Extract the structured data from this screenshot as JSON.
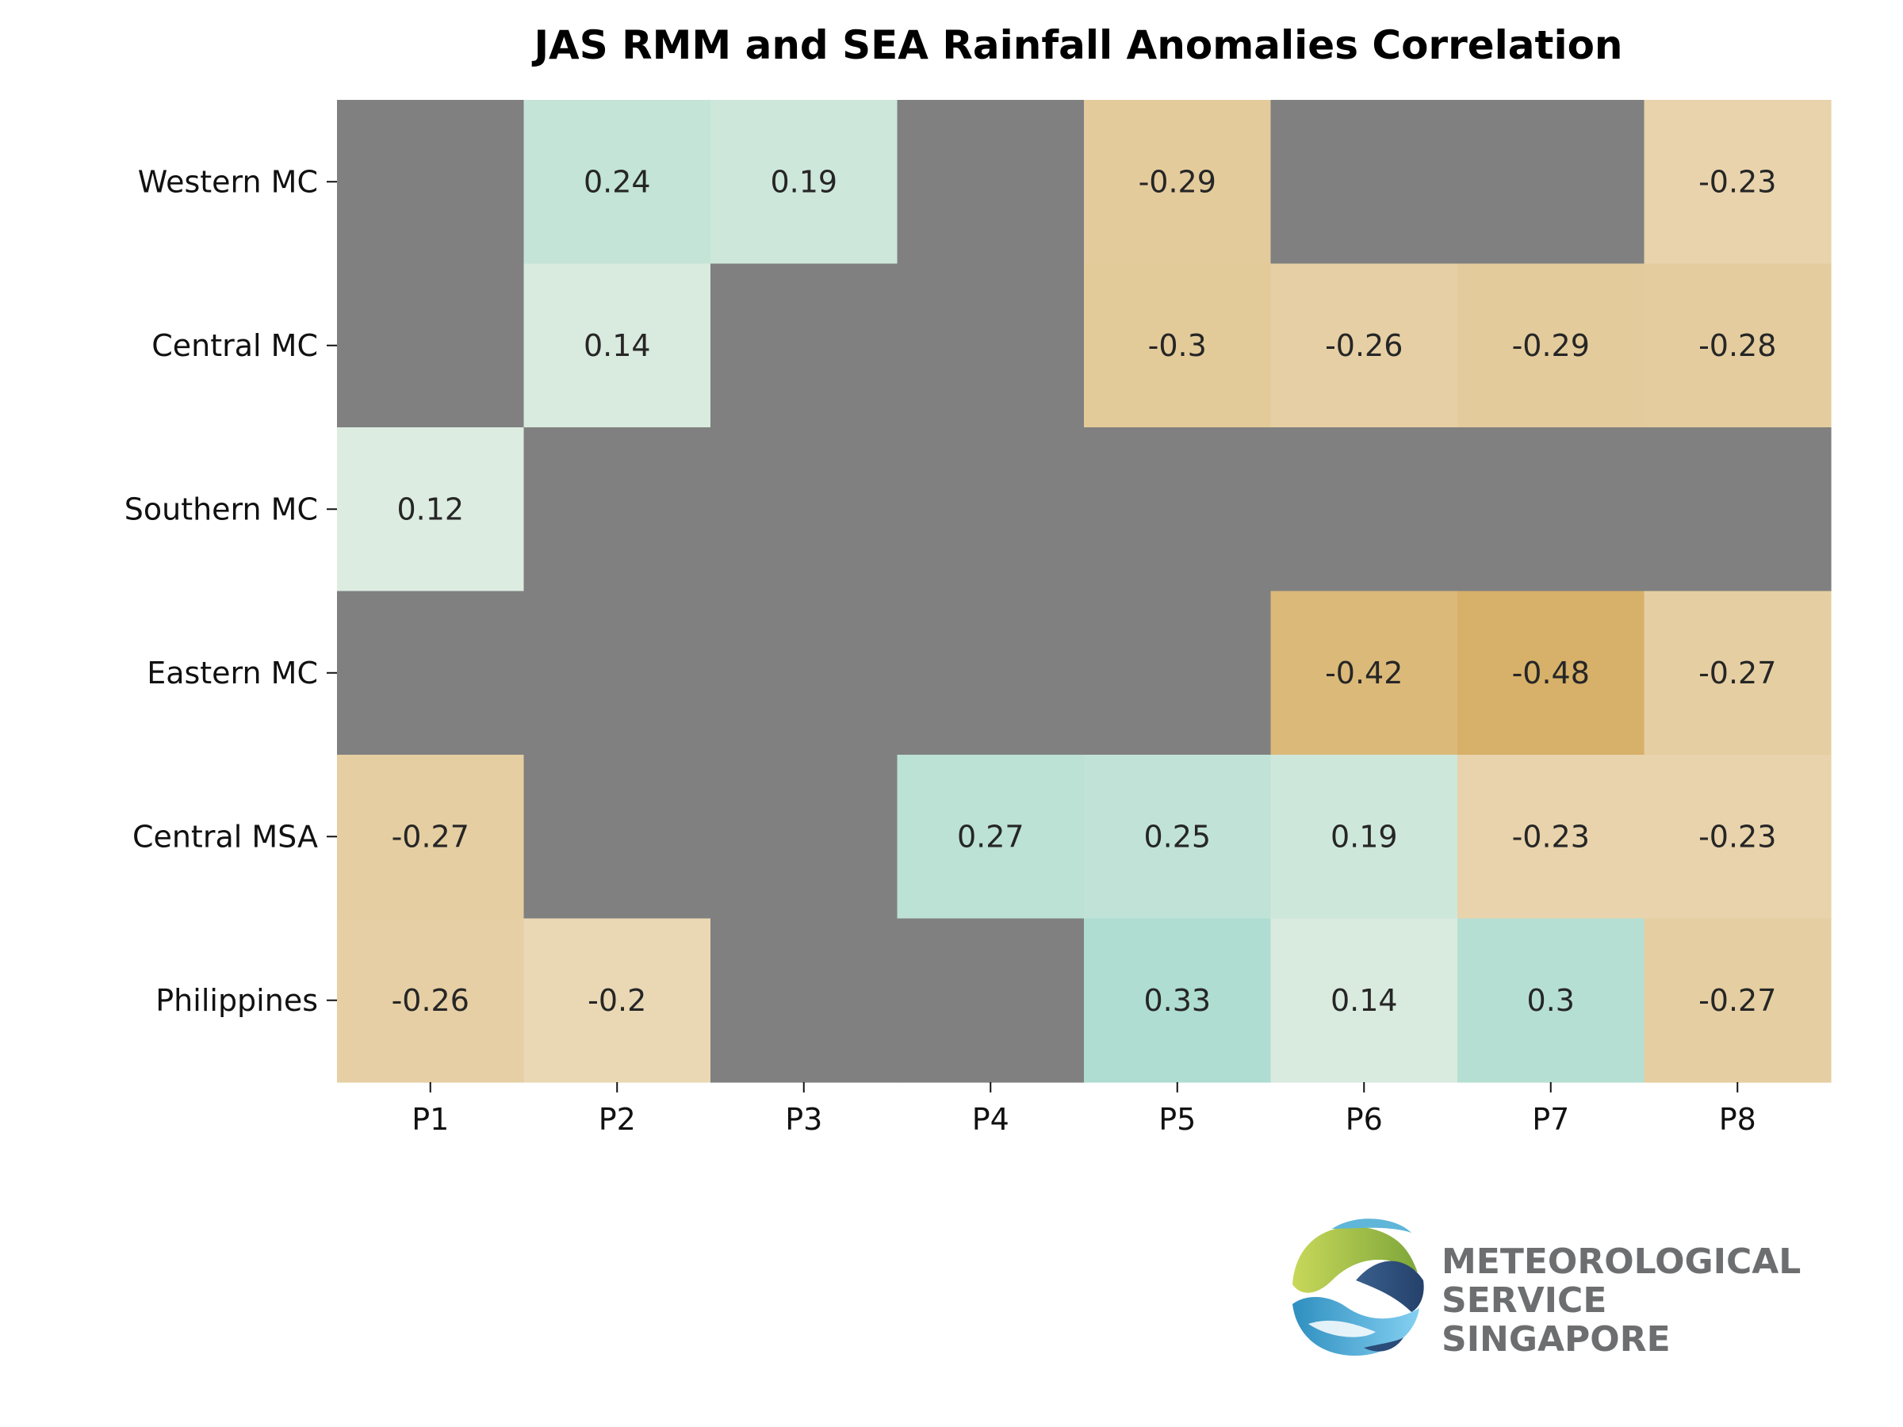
{
  "chart_data": {
    "type": "heatmap",
    "title": "JAS RMM and SEA Rainfall Anomalies Correlation",
    "xlabel": "",
    "ylabel": "",
    "x_categories": [
      "P1",
      "P2",
      "P3",
      "P4",
      "P5",
      "P6",
      "P7",
      "P8"
    ],
    "y_categories": [
      "Western MC",
      "Central MC",
      "Southern MC",
      "Eastern MC",
      "Central MSA",
      "Philippines"
    ],
    "values": [
      [
        null,
        0.24,
        0.19,
        null,
        -0.29,
        null,
        null,
        -0.23
      ],
      [
        null,
        0.14,
        null,
        null,
        -0.3,
        -0.26,
        -0.29,
        -0.28
      ],
      [
        0.12,
        null,
        null,
        null,
        null,
        null,
        null,
        null
      ],
      [
        null,
        null,
        null,
        null,
        null,
        -0.42,
        -0.48,
        -0.27
      ],
      [
        -0.27,
        null,
        null,
        0.27,
        0.25,
        0.19,
        -0.23,
        -0.23
      ],
      [
        -0.26,
        -0.2,
        null,
        null,
        0.33,
        0.14,
        0.3,
        -0.27
      ]
    ],
    "missing_color": "#808080",
    "positive_color": "#5fc4b4",
    "negative_color": "#c8912e",
    "neutral_color": "#f7f4ea",
    "color_range": [
      -0.7,
      0.7
    ],
    "grid": false,
    "legend": "none"
  },
  "logo": {
    "line1": "METEOROLOGICAL",
    "line2": "SERVICE",
    "line3": "SINGAPORE",
    "icon": "mss-globe-icon"
  }
}
